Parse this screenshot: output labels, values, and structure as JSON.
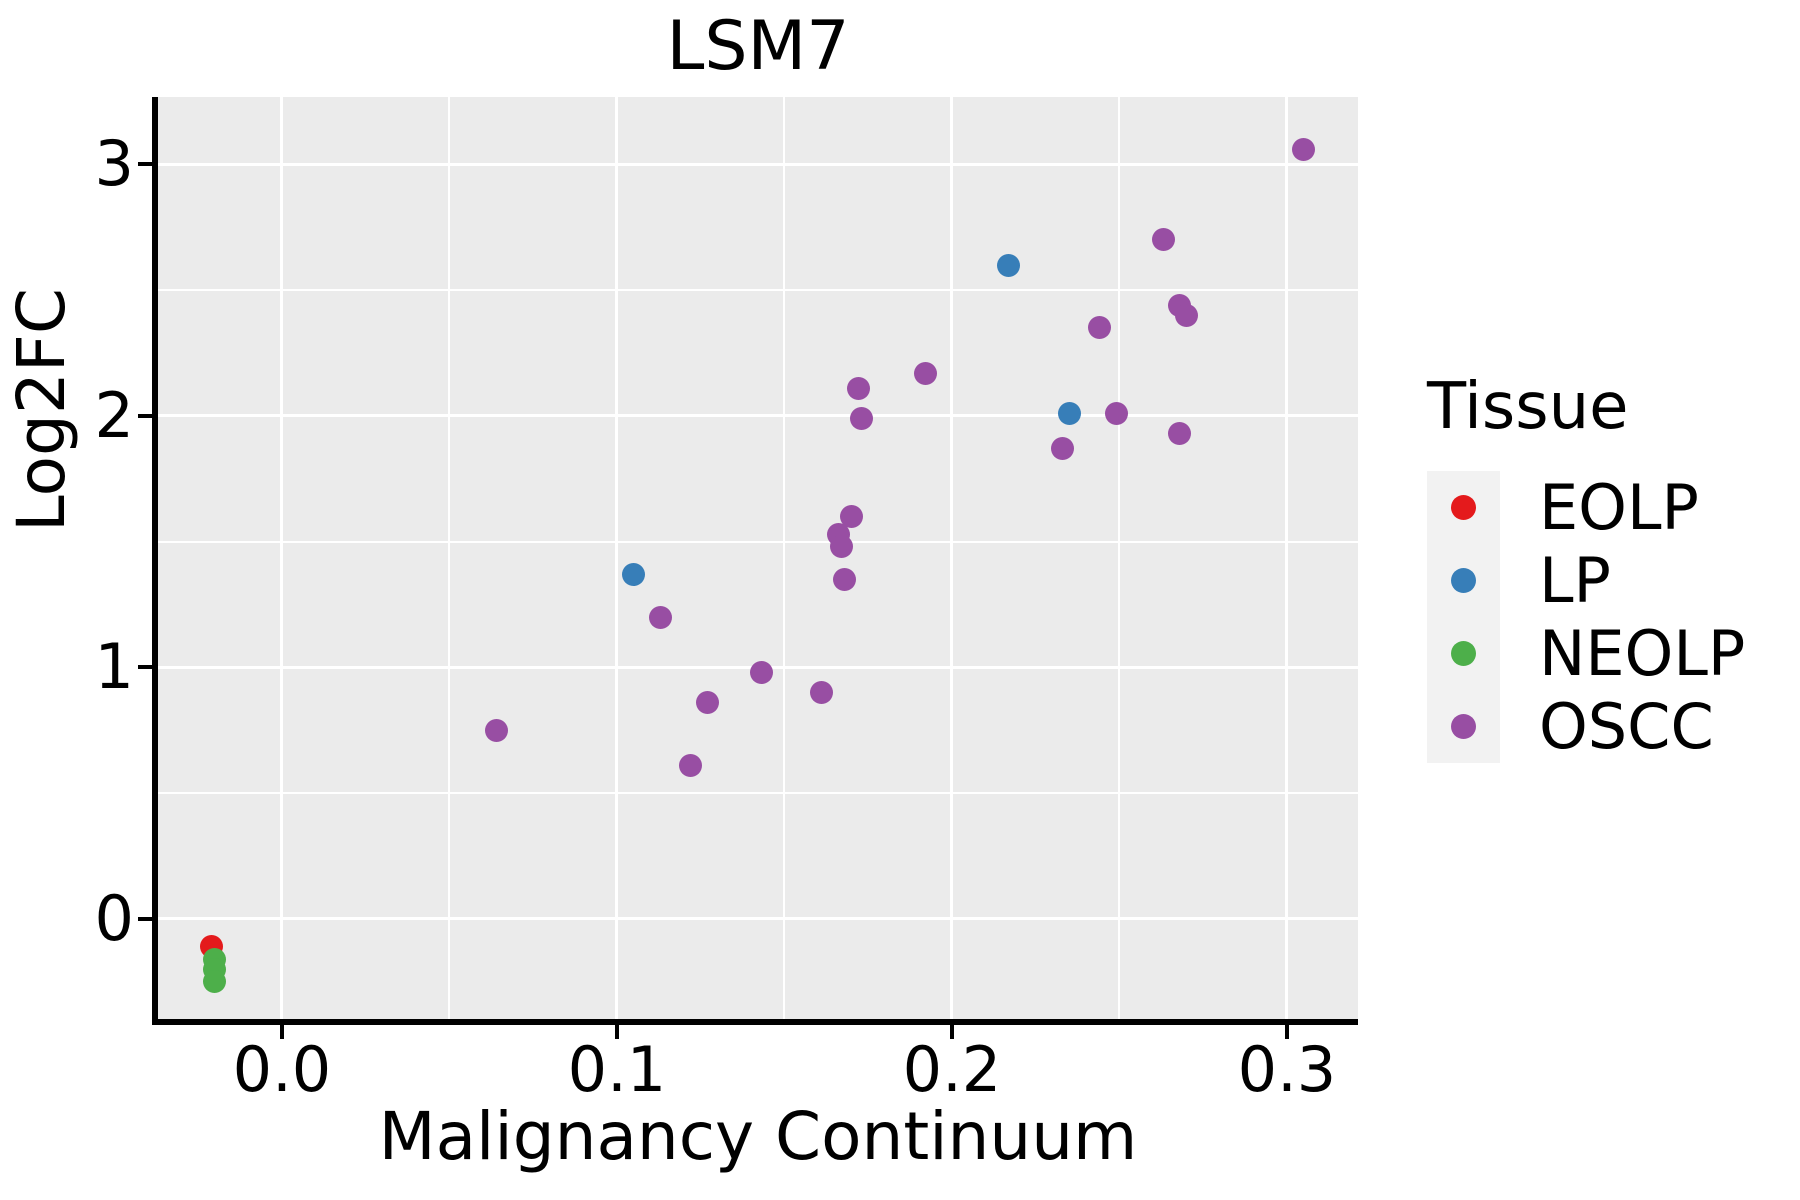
{
  "title": "LSM7",
  "style_colors": {
    "panel_bg": "#EBEBEB",
    "grid": "#FFFFFF",
    "axis": "#000000",
    "legend_key_bg": "#F2F2F2",
    "text": "#000000"
  },
  "chart_data": {
    "type": "scatter",
    "title": "LSM7",
    "xlabel": "Malignancy Continuum",
    "ylabel": "Log2FC",
    "legend_title": "Tissue",
    "legend_position": "right",
    "grid": "major+minor white on gray panel",
    "xlim": [
      -0.037,
      0.3212
    ],
    "ylim": [
      -0.4056,
      3.268
    ],
    "x_ticks": [
      0,
      0.1,
      0.2,
      0.3
    ],
    "x_tick_labels": [
      "0.0",
      "0.1",
      "0.2",
      "0.3"
    ],
    "x_minor_ticks": [
      0.05,
      0.15,
      0.25
    ],
    "y_ticks": [
      0,
      1,
      2,
      3
    ],
    "y_tick_labels": [
      "0",
      "1",
      "2",
      "3"
    ],
    "y_minor_ticks": [
      0.5,
      1.5,
      2.5
    ],
    "series": [
      {
        "name": "EOLP",
        "color": "#E41A1C",
        "points": [
          [
            -0.021,
            -0.11
          ]
        ]
      },
      {
        "name": "LP",
        "color": "#377EB8",
        "points": [
          [
            0.105,
            1.37
          ],
          [
            0.217,
            2.6
          ],
          [
            0.235,
            2.01
          ]
        ]
      },
      {
        "name": "NEOLP",
        "color": "#4DAF4A",
        "points": [
          [
            -0.02,
            -0.16
          ],
          [
            -0.02,
            -0.2
          ],
          [
            -0.02,
            -0.25
          ]
        ]
      },
      {
        "name": "OSCC",
        "color": "#984EA3",
        "points": [
          [
            0.064,
            0.75
          ],
          [
            0.113,
            1.2
          ],
          [
            0.122,
            0.61
          ],
          [
            0.127,
            0.86
          ],
          [
            0.143,
            0.98
          ],
          [
            0.161,
            0.9
          ],
          [
            0.166,
            1.53
          ],
          [
            0.167,
            1.48
          ],
          [
            0.17,
            1.6
          ],
          [
            0.168,
            1.35
          ],
          [
            0.172,
            2.11
          ],
          [
            0.173,
            1.99
          ],
          [
            0.192,
            2.17
          ],
          [
            0.233,
            1.87
          ],
          [
            0.244,
            2.35
          ],
          [
            0.249,
            2.01
          ],
          [
            0.263,
            2.7
          ],
          [
            0.268,
            2.44
          ],
          [
            0.27,
            2.4
          ],
          [
            0.268,
            1.93
          ],
          [
            0.305,
            3.06
          ]
        ]
      }
    ]
  }
}
